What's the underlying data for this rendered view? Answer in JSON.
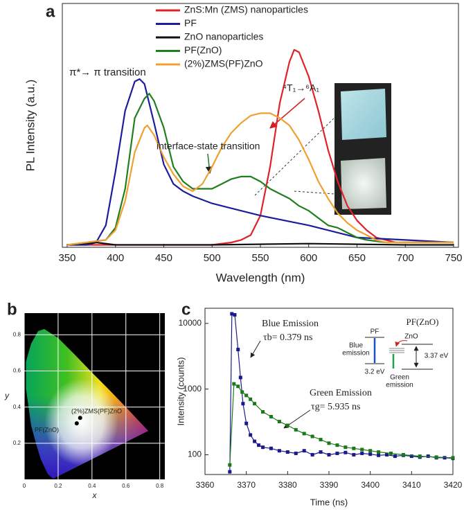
{
  "chart_data": [
    {
      "type": "line",
      "panel_label": "a",
      "x_label": "Wavelength (nm)",
      "y_label": "PL Intensity (a.u.)",
      "xlim": [
        345,
        755
      ],
      "xticks": [
        350,
        400,
        450,
        500,
        550,
        600,
        650,
        700,
        750
      ],
      "ylim": [
        0,
        1
      ],
      "series": [
        {
          "name": "ZnS:Mn (ZMS) nanoparticles",
          "color": "#e0202a",
          "x": [
            350,
            400,
            450,
            500,
            520,
            530,
            540,
            550,
            560,
            570,
            580,
            585,
            590,
            600,
            610,
            620,
            630,
            640,
            650,
            660,
            670,
            680,
            690,
            700,
            750
          ],
          "values": [
            0.01,
            0.01,
            0.01,
            0.01,
            0.02,
            0.03,
            0.05,
            0.13,
            0.33,
            0.59,
            0.76,
            0.81,
            0.8,
            0.7,
            0.56,
            0.4,
            0.27,
            0.17,
            0.11,
            0.07,
            0.04,
            0.03,
            0.02,
            0.02,
            0.02
          ]
        },
        {
          "name": "PF",
          "color": "#1c1c9c",
          "x": [
            350,
            370,
            380,
            390,
            400,
            410,
            420,
            425,
            430,
            440,
            450,
            460,
            470,
            480,
            500,
            520,
            550,
            600,
            650,
            700,
            750
          ],
          "values": [
            0.01,
            0.01,
            0.02,
            0.09,
            0.31,
            0.56,
            0.68,
            0.69,
            0.67,
            0.51,
            0.34,
            0.26,
            0.23,
            0.21,
            0.18,
            0.16,
            0.13,
            0.09,
            0.04,
            0.03,
            0.02
          ]
        },
        {
          "name": "ZnO nanoparticles",
          "color": "#111111",
          "x": [
            350,
            380,
            400,
            500,
            600,
            700,
            750
          ],
          "values": [
            0.01,
            0.02,
            0.01,
            0.01,
            0.015,
            0.01,
            0.01
          ]
        },
        {
          "name": "PF(ZnO)",
          "color": "#1f7f1f",
          "x": [
            350,
            390,
            400,
            410,
            420,
            430,
            435,
            440,
            450,
            460,
            470,
            480,
            490,
            500,
            510,
            520,
            530,
            540,
            550,
            560,
            570,
            580,
            590,
            600,
            610,
            620,
            630,
            640,
            650,
            660,
            680,
            700,
            750
          ],
          "values": [
            0.01,
            0.03,
            0.08,
            0.24,
            0.53,
            0.61,
            0.63,
            0.6,
            0.49,
            0.33,
            0.27,
            0.24,
            0.24,
            0.24,
            0.26,
            0.28,
            0.29,
            0.29,
            0.27,
            0.24,
            0.22,
            0.2,
            0.17,
            0.15,
            0.12,
            0.09,
            0.08,
            0.06,
            0.04,
            0.03,
            0.02,
            0.02,
            0.02
          ]
        },
        {
          "name": "(2%)ZMS(PF)ZnO",
          "color": "#f0a030",
          "x": [
            350,
            390,
            400,
            410,
            420,
            430,
            433,
            440,
            450,
            460,
            470,
            480,
            490,
            500,
            510,
            520,
            530,
            540,
            550,
            560,
            570,
            580,
            590,
            600,
            610,
            620,
            630,
            640,
            650,
            660,
            670,
            680,
            700,
            750
          ],
          "values": [
            0.01,
            0.03,
            0.07,
            0.19,
            0.39,
            0.49,
            0.5,
            0.46,
            0.37,
            0.3,
            0.25,
            0.23,
            0.26,
            0.33,
            0.41,
            0.47,
            0.51,
            0.54,
            0.55,
            0.55,
            0.53,
            0.5,
            0.44,
            0.36,
            0.27,
            0.2,
            0.14,
            0.1,
            0.07,
            0.05,
            0.03,
            0.02,
            0.02,
            0.02
          ]
        }
      ],
      "annotations": [
        "π*→ π transition",
        "interface-state transition",
        "⁴T₁→⁶A₁"
      ]
    },
    {
      "type": "scatter",
      "panel_label": "b",
      "x_label": "x",
      "y_label": "y",
      "xlim": [
        0,
        0.83
      ],
      "xticks": [
        0,
        0.2,
        0.4,
        0.6,
        0.8
      ],
      "ylim": [
        0,
        0.92
      ],
      "yticks": [
        0.2,
        0.4,
        0.6,
        0.8
      ],
      "grid": true,
      "series": [
        {
          "name": "PF(ZnO)",
          "color": "#000000",
          "x": [
            0.31
          ],
          "values": [
            0.31
          ]
        },
        {
          "name": "(2%)ZMS(PF)ZnO",
          "color": "#000000",
          "x": [
            0.33
          ],
          "values": [
            0.34
          ]
        }
      ]
    },
    {
      "type": "line",
      "panel_label": "c",
      "x_label": "Time (ns)",
      "y_label": "Intensity (counts)",
      "log_y": true,
      "xlim": [
        3360,
        3420
      ],
      "xticks": [
        3360,
        3370,
        3380,
        3390,
        3400,
        3410,
        3420
      ],
      "ylim": [
        50,
        17000
      ],
      "yticks": [
        100,
        1000,
        10000
      ],
      "series": [
        {
          "color": "#1a1a8c",
          "x": [
            3366,
            3366.5,
            3367.2,
            3368,
            3368.6,
            3369.2,
            3370,
            3371,
            3372,
            3373,
            3374,
            3376,
            3378,
            3380,
            3382,
            3384,
            3386,
            3388,
            3390,
            3392,
            3394,
            3396,
            3398,
            3400,
            3402,
            3404,
            3406,
            3408,
            3410,
            3412,
            3414,
            3416,
            3418,
            3420
          ],
          "values": [
            55,
            14000,
            13500,
            4000,
            1500,
            600,
            300,
            200,
            160,
            140,
            130,
            125,
            115,
            110,
            105,
            115,
            100,
            110,
            100,
            105,
            108,
            100,
            105,
            102,
            98,
            100,
            95,
            98,
            95,
            92,
            95,
            90,
            90,
            88
          ]
        },
        {
          "color": "#1a7a1a",
          "x": [
            3366,
            3367,
            3368,
            3369,
            3370,
            3371,
            3372,
            3374,
            3376,
            3378,
            3380,
            3382,
            3384,
            3386,
            3388,
            3390,
            3392,
            3394,
            3396,
            3398,
            3400,
            3402,
            3405,
            3408,
            3412,
            3416,
            3420
          ],
          "values": [
            70,
            1200,
            1100,
            900,
            800,
            700,
            600,
            450,
            380,
            320,
            280,
            240,
            210,
            190,
            170,
            150,
            140,
            130,
            125,
            120,
            115,
            110,
            105,
            100,
            95,
            92,
            90
          ]
        }
      ],
      "annotations": [
        "Blue Emission",
        "τb= 0.379 ns",
        "Green Emission",
        "τg= 5.935 ns"
      ],
      "inset": {
        "title": "PF(ZnO)",
        "labels": [
          "PF",
          "ZnO",
          "Blue",
          "emission",
          "3.2 eV",
          "3.37 eV",
          "Green",
          "emission"
        ]
      }
    }
  ]
}
